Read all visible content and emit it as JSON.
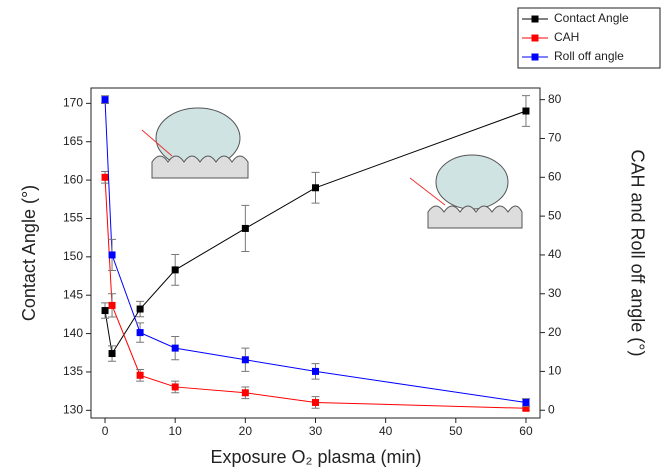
{
  "chart_data": {
    "type": "line",
    "x": [
      0,
      1,
      5,
      10,
      20,
      30,
      60
    ],
    "xlim": [
      -2,
      62
    ],
    "xticks": [
      0,
      10,
      20,
      30,
      40,
      50,
      60
    ],
    "ylim": [
      129,
      172
    ],
    "yticks": [
      130,
      135,
      140,
      145,
      150,
      155,
      160,
      165,
      170
    ],
    "y2lim": [
      -2,
      83
    ],
    "y2ticks": [
      0,
      10,
      20,
      30,
      40,
      50,
      60,
      70,
      80
    ],
    "xlabel": "Exposure O₂ plasma (min)",
    "ylabel": "Contact Angle (°)",
    "y2label": "CAH and Roll off angle (°)",
    "legend": "top-right",
    "series": [
      {
        "name": "Contact Angle",
        "color": "#000000",
        "values": [
          143,
          137.4,
          143.2,
          148.3,
          153.7,
          159,
          169
        ],
        "errors": [
          1,
          1,
          1,
          2,
          3,
          2,
          2
        ]
      },
      {
        "name": "CAH",
        "color": "#ff0000",
        "axis": "y2",
        "values": [
          60,
          27,
          9,
          6,
          4.5,
          2,
          0.5
        ],
        "errors": [
          1.5,
          3,
          1.5,
          1.5,
          1.5,
          1.5,
          0.5
        ]
      },
      {
        "name": "Roll off angle",
        "color": "#0000ff",
        "axis": "y2",
        "values": [
          80,
          40,
          20,
          16,
          13,
          10,
          2
        ],
        "errors": [
          1,
          4,
          2.5,
          3,
          3,
          2,
          1
        ]
      }
    ]
  }
}
